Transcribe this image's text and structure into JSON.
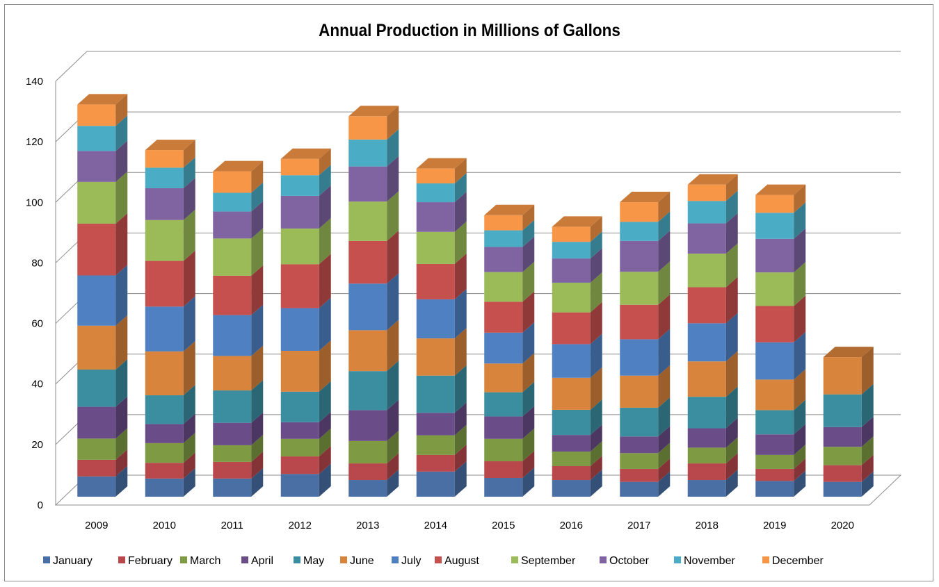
{
  "chart_data": {
    "type": "bar",
    "stacked": true,
    "three_d": true,
    "title": "Annual Production in Millions of Gallons",
    "categories": [
      "2009",
      "2010",
      "2011",
      "2012",
      "2013",
      "2014",
      "2015",
      "2016",
      "2017",
      "2018",
      "2019",
      "2020"
    ],
    "ylim": [
      0,
      140
    ],
    "yticks": [
      0,
      20,
      40,
      60,
      80,
      100,
      120,
      140
    ],
    "grid": true,
    "legend_position": "bottom",
    "series": [
      {
        "name": "January",
        "color": "#4a6fa5",
        "values": [
          6.7,
          6.0,
          6.0,
          7.5,
          5.5,
          8.3,
          6.2,
          5.5,
          4.9,
          5.5,
          5.2,
          4.9
        ]
      },
      {
        "name": "February",
        "color": "#b8484b",
        "values": [
          5.5,
          5.2,
          5.5,
          5.8,
          5.5,
          5.5,
          5.5,
          4.6,
          4.3,
          5.5,
          4.0,
          5.5
        ]
      },
      {
        "name": "March",
        "color": "#7e9a43",
        "values": [
          7.0,
          6.5,
          5.5,
          5.8,
          7.4,
          6.5,
          7.4,
          4.8,
          5.2,
          5.2,
          4.6,
          6.1
        ]
      },
      {
        "name": "April",
        "color": "#6a4d88",
        "values": [
          10.5,
          6.3,
          7.4,
          5.5,
          10.2,
          7.4,
          7.4,
          5.5,
          5.5,
          6.4,
          6.8,
          6.5
        ]
      },
      {
        "name": "May",
        "color": "#3b8ea0",
        "values": [
          12.3,
          9.5,
          10.7,
          10.1,
          12.9,
          12.3,
          8.0,
          8.3,
          9.5,
          10.4,
          8.0,
          10.8
        ]
      },
      {
        "name": "June",
        "color": "#d9843c",
        "values": [
          14.5,
          14.5,
          11.4,
          13.5,
          13.5,
          12.3,
          9.5,
          10.6,
          10.6,
          11.7,
          10.1,
          12.3
        ]
      },
      {
        "name": "July",
        "color": "#4f81c2",
        "values": [
          16.6,
          14.8,
          13.5,
          14.1,
          15.4,
          12.9,
          10.2,
          11.1,
          12.0,
          12.6,
          12.3,
          0
        ]
      },
      {
        "name": "August",
        "color": "#c6504e",
        "values": [
          17.1,
          15.1,
          13.0,
          14.5,
          14.1,
          11.7,
          10.2,
          10.5,
          11.4,
          11.9,
          12.0,
          0
        ]
      },
      {
        "name": "September",
        "color": "#9bbb59",
        "values": [
          13.8,
          13.5,
          12.3,
          11.8,
          13.0,
          10.6,
          9.8,
          9.8,
          10.9,
          11.1,
          11.1,
          0
        ]
      },
      {
        "name": "October",
        "color": "#8064a2",
        "values": [
          10.2,
          10.5,
          8.9,
          10.8,
          11.6,
          9.8,
          8.3,
          8.0,
          10.2,
          10.0,
          11.1,
          0
        ]
      },
      {
        "name": "November",
        "color": "#4bacc6",
        "values": [
          8.3,
          6.8,
          6.2,
          6.8,
          8.9,
          6.2,
          5.5,
          5.5,
          6.3,
          7.4,
          8.6,
          0
        ]
      },
      {
        "name": "December",
        "color": "#f79646",
        "values": [
          7.1,
          5.8,
          7.1,
          5.4,
          7.7,
          4.9,
          5.0,
          5.0,
          6.5,
          5.4,
          5.9,
          0
        ]
      }
    ]
  }
}
